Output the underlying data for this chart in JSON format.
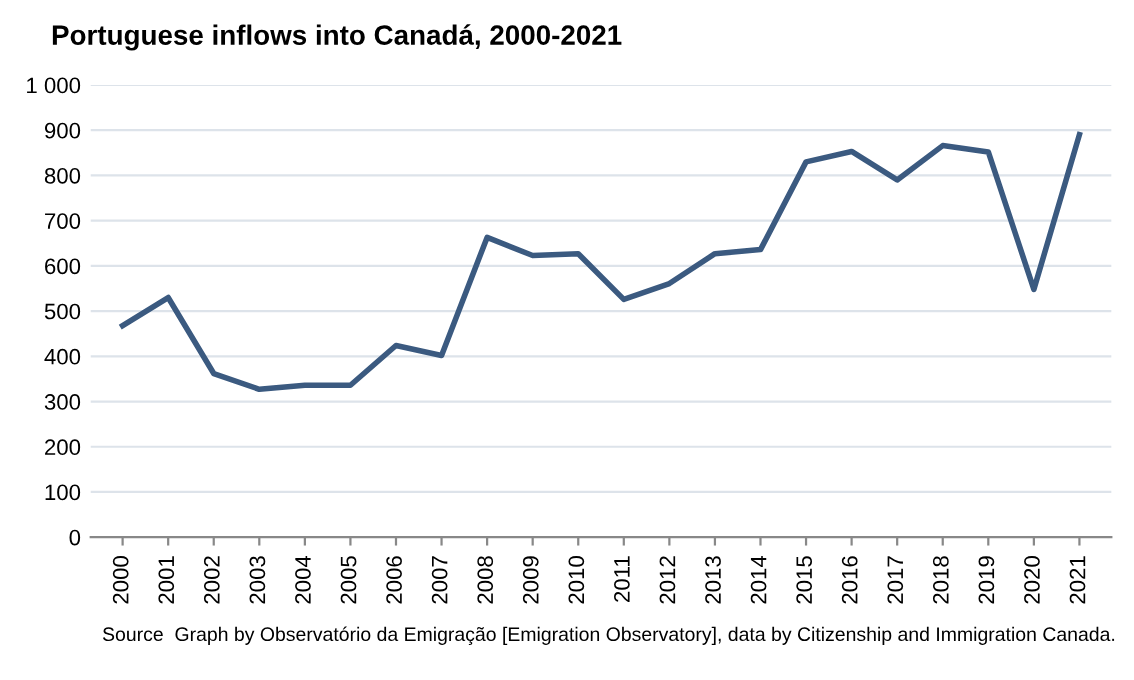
{
  "chart_data": {
    "type": "line",
    "title": "Portuguese inflows into Canadá, 2000-2021",
    "categories": [
      "2000",
      "2001",
      "2002",
      "2003",
      "2004",
      "2005",
      "2006",
      "2007",
      "2008",
      "2009",
      "2010",
      "2011",
      "2012",
      "2013",
      "2014",
      "2015",
      "2016",
      "2017",
      "2018",
      "2019",
      "2020",
      "2021"
    ],
    "series": [
      {
        "color": "#3b5a80",
        "values": [
          468,
          530,
          362,
          327,
          336,
          336,
          424,
          402,
          663,
          623,
          627,
          526,
          561,
          627,
          636,
          830,
          853,
          790,
          866,
          852,
          548,
          890
        ]
      }
    ],
    "ylim": [
      0,
      1000
    ],
    "yticks": [
      0,
      100,
      200,
      300,
      400,
      500,
      600,
      700,
      800,
      900,
      {
        "value": 1000,
        "label": "1 000"
      }
    ],
    "grid": "y",
    "marker": "none",
    "line_style": "solid",
    "legend": false,
    "annotations": [
      "Source  Graph by Observatório da Emigração [Emigration Observatory], data by Citizenship and Immigration Canada."
    ]
  }
}
